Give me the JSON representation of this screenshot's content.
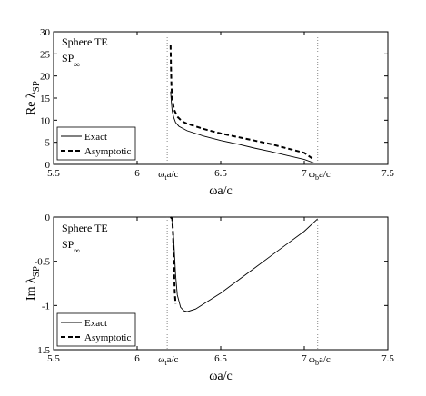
{
  "chart_data": [
    {
      "type": "line",
      "annotation_lines": [
        "Sphere TE",
        "SP"
      ],
      "annotation_subscript": "∞",
      "xlabel": "ωa/c",
      "ylabel": "Re λ",
      "ylabel_sub": "SP",
      "xlim": [
        5.5,
        7.5
      ],
      "ylim": [
        0,
        30
      ],
      "x_ticks": [
        "5.5",
        "6",
        "6.5",
        "7",
        "7.5"
      ],
      "x_tick_values": [
        5.5,
        6,
        6.5,
        7,
        7.5
      ],
      "y_ticks": [
        "0",
        "5",
        "10",
        "15",
        "20",
        "25",
        "30"
      ],
      "y_tick_values": [
        0,
        5,
        10,
        15,
        20,
        25,
        30
      ],
      "markers": [
        {
          "x": 6.18,
          "label_main": "ω",
          "label_sub": "t",
          "label_tail": "a/c"
        },
        {
          "x": 7.08,
          "label_main": "ω",
          "label_sub": "b",
          "label_tail": "a/c"
        }
      ],
      "legend_position": "bottom-left",
      "series": [
        {
          "name": "Exact",
          "style": "solid",
          "color": "#000000",
          "x": [
            6.2,
            6.205,
            6.21,
            6.22,
            6.23,
            6.25,
            6.3,
            6.4,
            6.5,
            6.6,
            6.7,
            6.8,
            6.9,
            7.0,
            7.06
          ],
          "y": [
            16.5,
            14.0,
            12.0,
            10.5,
            9.5,
            8.6,
            7.6,
            6.4,
            5.4,
            4.6,
            3.7,
            2.9,
            2.0,
            1.1,
            0.3
          ]
        },
        {
          "name": "Asymptotic",
          "style": "dashed",
          "color": "#000000",
          "x": [
            6.2,
            6.202,
            6.205,
            6.21,
            6.22,
            6.24,
            6.27,
            6.3,
            6.4,
            6.5,
            6.6,
            6.7,
            6.8,
            6.9,
            7.0,
            7.06
          ],
          "y": [
            27.0,
            22.5,
            18.0,
            15.0,
            12.5,
            10.8,
            9.7,
            9.2,
            8.0,
            7.0,
            6.2,
            5.4,
            4.6,
            3.6,
            2.6,
            1.0
          ]
        }
      ]
    },
    {
      "type": "line",
      "annotation_lines": [
        "Sphere TE",
        "SP"
      ],
      "annotation_subscript": "∞",
      "xlabel": "ωa/c",
      "ylabel": "Im λ",
      "ylabel_sub": "SP",
      "xlim": [
        5.5,
        7.5
      ],
      "ylim": [
        -1.5,
        0
      ],
      "x_ticks": [
        "5.5",
        "6",
        "6.5",
        "7",
        "7.5"
      ],
      "x_tick_values": [
        5.5,
        6,
        6.5,
        7,
        7.5
      ],
      "y_ticks": [
        "0",
        "-0.5",
        "-1",
        "-1.5"
      ],
      "y_tick_values": [
        0,
        -0.5,
        -1,
        -1.5
      ],
      "markers": [
        {
          "x": 6.18,
          "label_main": "ω",
          "label_sub": "t",
          "label_tail": "a/c"
        },
        {
          "x": 7.08,
          "label_main": "ω",
          "label_sub": "b",
          "label_tail": "a/c"
        }
      ],
      "legend_position": "bottom-left",
      "series": [
        {
          "name": "Exact",
          "style": "solid",
          "color": "#000000",
          "x": [
            6.2,
            6.21,
            6.22,
            6.23,
            6.24,
            6.26,
            6.28,
            6.3,
            6.35,
            6.4,
            6.5,
            6.6,
            6.7,
            6.8,
            6.9,
            7.0,
            7.08
          ],
          "y": [
            0,
            -0.02,
            -0.3,
            -0.65,
            -0.88,
            -1.02,
            -1.06,
            -1.07,
            -1.04,
            -0.98,
            -0.86,
            -0.72,
            -0.58,
            -0.44,
            -0.3,
            -0.16,
            -0.02
          ]
        },
        {
          "name": "Asymptotic",
          "style": "dashed",
          "color": "#000000",
          "x": [
            6.2,
            6.21,
            6.215,
            6.22,
            6.225,
            6.23
          ],
          "y": [
            0,
            -0.02,
            -0.2,
            -0.55,
            -0.85,
            -0.98
          ]
        }
      ]
    }
  ]
}
